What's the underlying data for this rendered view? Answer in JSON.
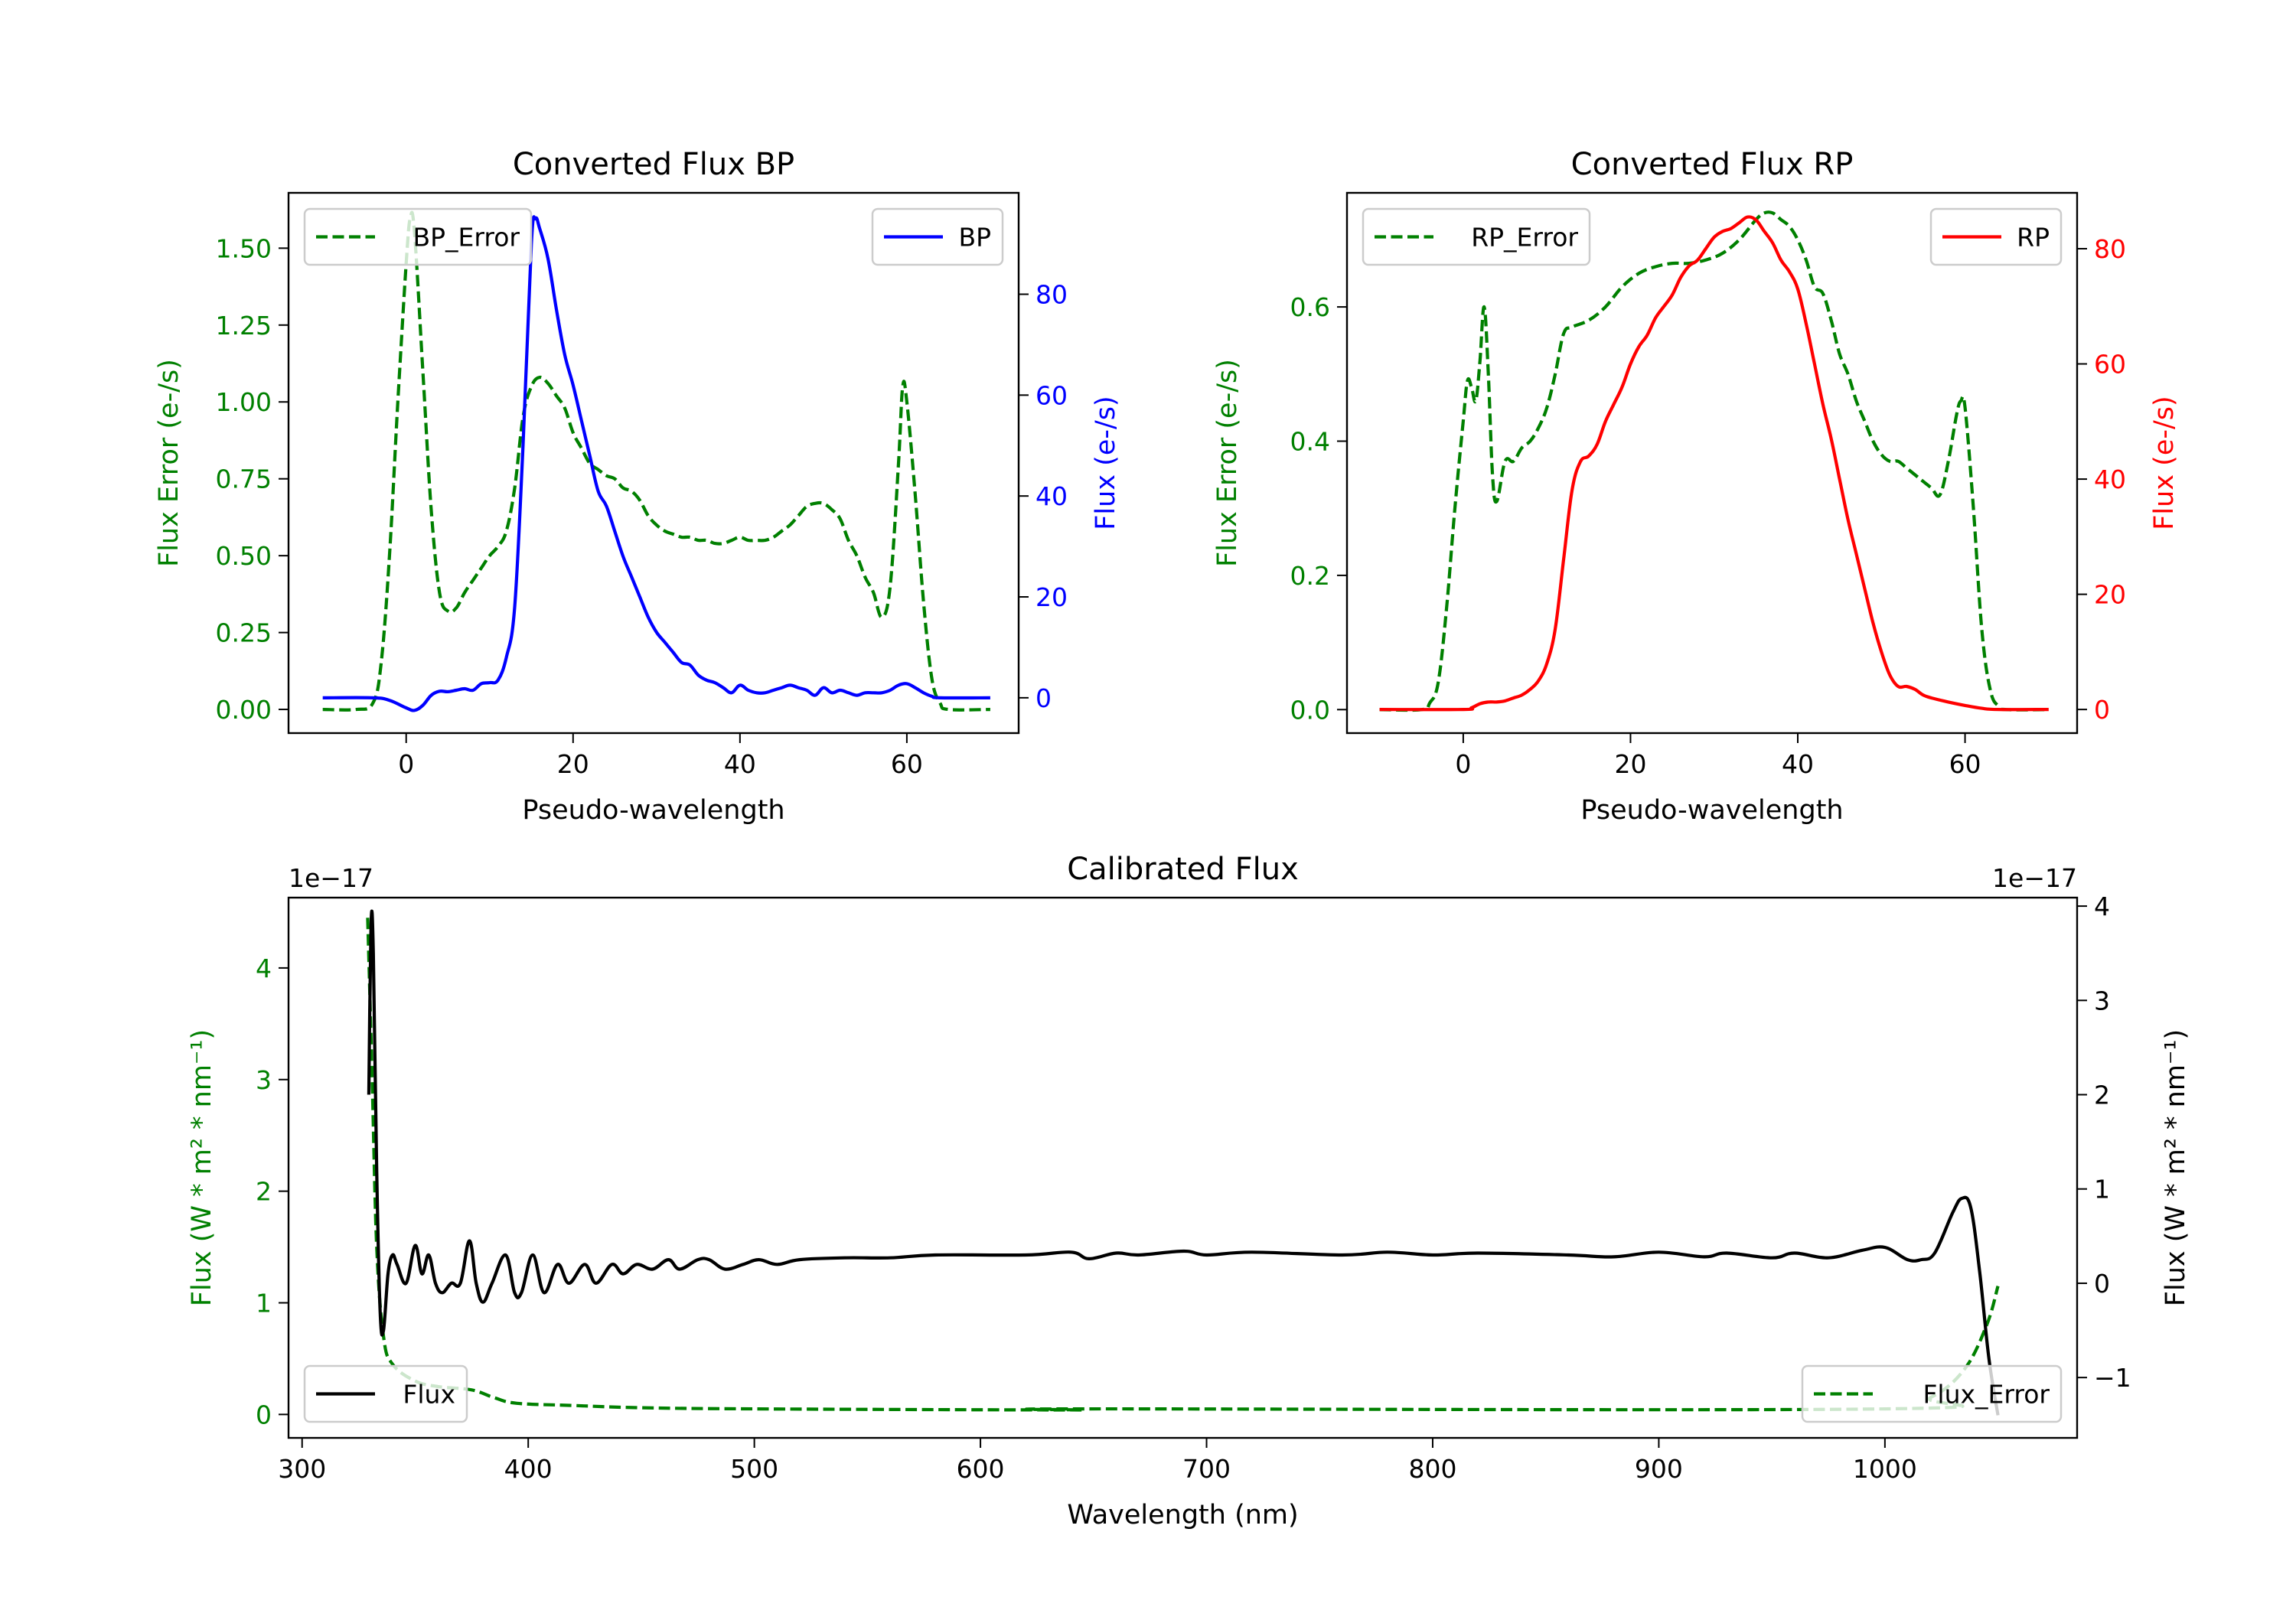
{
  "chart_data": [
    {
      "id": "bp",
      "type": "line",
      "title": "Converted Flux BP",
      "xlabel": "Pseudo-wavelength",
      "ylabel_left": "Flux Error (e-/s)",
      "ylabel_right": "Flux (e-/s)",
      "xlim": [
        -14.1,
        73.4
      ],
      "ylim_left": [
        -0.077,
        1.68
      ],
      "ylim_right": [
        -7,
        100.1
      ],
      "xticks": [
        0,
        20,
        40,
        60
      ],
      "xtick_labels": [
        "0",
        "20",
        "40",
        "60"
      ],
      "yticks_left": [
        0,
        0.25,
        0.5,
        0.75,
        1.0,
        1.25,
        1.5
      ],
      "ytick_labels_left": [
        "0.00",
        "0.25",
        "0.50",
        "0.75",
        "1.00",
        "1.25",
        "1.50"
      ],
      "yticks_right": [
        0,
        20,
        40,
        60,
        80
      ],
      "ytick_labels_right": [
        "0",
        "20",
        "40",
        "60",
        "80"
      ],
      "left_color": "#008000",
      "right_color": "#0000ff",
      "grid": false,
      "legends": [
        {
          "placement": "upper-left",
          "entries": [
            {
              "label": "BP_Error",
              "series": "BP_Error"
            }
          ]
        },
        {
          "placement": "upper-right",
          "entries": [
            {
              "label": "BP",
              "series": "BP"
            }
          ]
        }
      ],
      "series": [
        {
          "name": "BP_Error",
          "axis": "left",
          "color": "#008000",
          "style": "dashed",
          "x": [
            -10,
            -6,
            -4,
            -3,
            -2,
            -1,
            0,
            0.5,
            1,
            2,
            3,
            4,
            5,
            6,
            7,
            8,
            9,
            10,
            11,
            12,
            13,
            14,
            15,
            16,
            17,
            18,
            19,
            20,
            21,
            22,
            23,
            24,
            25,
            26,
            27,
            28,
            29,
            30,
            31,
            32,
            33,
            34,
            35,
            36,
            37,
            38,
            39,
            40,
            41,
            42,
            43,
            44,
            45,
            46,
            47,
            48,
            49,
            50,
            51,
            52,
            53,
            54,
            55,
            56,
            57,
            58,
            59,
            59.5,
            60,
            61,
            62,
            63,
            64,
            65,
            70
          ],
          "y": [
            0,
            0,
            0.02,
            0.15,
            0.5,
            1.0,
            1.45,
            1.6,
            1.55,
            1.1,
            0.65,
            0.38,
            0.32,
            0.33,
            0.38,
            0.42,
            0.46,
            0.5,
            0.53,
            0.58,
            0.72,
            0.95,
            1.05,
            1.08,
            1.06,
            1.02,
            0.98,
            0.9,
            0.85,
            0.8,
            0.78,
            0.76,
            0.75,
            0.72,
            0.71,
            0.68,
            0.63,
            0.6,
            0.58,
            0.57,
            0.56,
            0.56,
            0.55,
            0.55,
            0.54,
            0.54,
            0.55,
            0.56,
            0.55,
            0.55,
            0.55,
            0.56,
            0.58,
            0.6,
            0.63,
            0.66,
            0.67,
            0.67,
            0.65,
            0.62,
            0.55,
            0.5,
            0.43,
            0.38,
            0.3,
            0.4,
            0.8,
            1.05,
            1.0,
            0.7,
            0.35,
            0.1,
            0.02,
            0,
            0
          ]
        },
        {
          "name": "BP",
          "axis": "right",
          "color": "#0000ff",
          "style": "solid",
          "x": [
            -10,
            -4,
            -2,
            0,
            1,
            2,
            3,
            4,
            5,
            6,
            7,
            8,
            9,
            10,
            11,
            12,
            13,
            14,
            15,
            15.5,
            16,
            17,
            18,
            19,
            20,
            21,
            22,
            23,
            24,
            25,
            26,
            27,
            28,
            29,
            30,
            31,
            32,
            33,
            34,
            35,
            36,
            37,
            38,
            39,
            40,
            41,
            42,
            43,
            44,
            45,
            46,
            47,
            48,
            49,
            50,
            51,
            52,
            53,
            54,
            55,
            56,
            57,
            58,
            59,
            60,
            61,
            62,
            63,
            64,
            70
          ],
          "y": [
            0,
            0,
            -0.5,
            -2,
            -2.5,
            -1.5,
            0.5,
            1.3,
            1.2,
            1.5,
            1.8,
            1.5,
            2.8,
            3,
            3.5,
            8,
            18,
            50,
            90,
            95,
            93,
            87,
            77,
            68,
            62,
            55,
            48,
            41,
            38,
            33,
            28,
            24,
            20,
            16,
            13,
            11,
            9,
            7,
            6.5,
            4.5,
            3.5,
            3,
            2,
            1,
            2.5,
            1.5,
            1,
            1,
            1.5,
            2,
            2.5,
            2,
            1.5,
            0.5,
            2,
            1,
            1.5,
            1,
            0.5,
            1,
            1,
            1,
            1.5,
            2.5,
            2.8,
            2,
            1,
            0.3,
            0,
            0
          ]
        }
      ]
    },
    {
      "id": "rp",
      "type": "line",
      "title": "Converted Flux RP",
      "xlabel": "Pseudo-wavelength",
      "ylabel_left": "Flux Error (e-/s)",
      "ylabel_right": "Flux (e-/s)",
      "xlim": [
        -13.9,
        73.4
      ],
      "ylim_left": [
        -0.035,
        0.77
      ],
      "ylim_right": [
        -4.1,
        89.7
      ],
      "xticks": [
        0,
        20,
        40,
        60
      ],
      "xtick_labels": [
        "0",
        "20",
        "40",
        "60"
      ],
      "yticks_left": [
        0,
        0.2,
        0.4,
        0.6
      ],
      "ytick_labels_left": [
        "0.0",
        "0.2",
        "0.4",
        "0.6"
      ],
      "yticks_right": [
        0,
        20,
        40,
        60,
        80
      ],
      "ytick_labels_right": [
        "0",
        "20",
        "40",
        "60",
        "80"
      ],
      "left_color": "#008000",
      "right_color": "#ff0000",
      "grid": false,
      "legends": [
        {
          "placement": "upper-left",
          "entries": [
            {
              "label": "RP_Error",
              "series": "RP_Error"
            }
          ]
        },
        {
          "placement": "upper-right",
          "entries": [
            {
              "label": "RP",
              "series": "RP"
            }
          ]
        }
      ],
      "series": [
        {
          "name": "RP_Error",
          "axis": "left",
          "color": "#008000",
          "style": "dashed",
          "x": [
            -10,
            -5,
            -4,
            -3,
            -2,
            -1,
            0,
            0.5,
            1,
            1.5,
            2,
            2.5,
            3,
            3.5,
            4,
            5,
            6,
            7,
            8,
            9,
            10,
            11,
            12,
            13,
            15,
            17,
            19,
            21,
            23,
            25,
            27,
            29,
            31,
            33,
            35,
            36,
            37,
            38,
            39,
            40,
            41,
            42,
            43,
            44,
            45,
            46,
            47,
            48,
            49,
            50,
            51,
            52,
            53,
            54,
            55,
            56,
            57,
            58,
            59,
            59.5,
            60,
            61,
            62,
            63,
            64,
            65,
            70
          ],
          "y": [
            0,
            0,
            0.01,
            0.04,
            0.15,
            0.3,
            0.43,
            0.49,
            0.48,
            0.46,
            0.52,
            0.6,
            0.5,
            0.35,
            0.31,
            0.37,
            0.37,
            0.39,
            0.4,
            0.42,
            0.45,
            0.5,
            0.56,
            0.57,
            0.58,
            0.6,
            0.63,
            0.65,
            0.66,
            0.665,
            0.665,
            0.67,
            0.68,
            0.7,
            0.73,
            0.74,
            0.74,
            0.73,
            0.72,
            0.7,
            0.67,
            0.63,
            0.62,
            0.58,
            0.53,
            0.5,
            0.46,
            0.43,
            0.4,
            0.38,
            0.37,
            0.37,
            0.36,
            0.35,
            0.34,
            0.33,
            0.32,
            0.37,
            0.44,
            0.46,
            0.45,
            0.3,
            0.12,
            0.03,
            0.005,
            0,
            0
          ]
        },
        {
          "name": "RP",
          "axis": "right",
          "color": "#ff0000",
          "style": "solid",
          "x": [
            -10,
            0,
            1,
            2,
            3,
            4,
            5,
            6,
            7,
            8,
            9,
            10,
            11,
            12,
            13,
            14,
            15,
            16,
            17,
            18,
            19,
            20,
            21,
            22,
            23,
            24,
            25,
            26,
            27,
            28,
            29,
            30,
            31,
            32,
            33,
            34,
            35,
            36,
            37,
            38,
            39,
            40,
            41,
            42,
            43,
            44,
            45,
            46,
            47,
            48,
            49,
            50,
            51,
            52,
            53,
            54,
            55,
            56,
            58,
            60,
            62,
            64,
            70
          ],
          "y": [
            0,
            0,
            0.3,
            1,
            1.3,
            1.3,
            1.5,
            2,
            2.5,
            3.5,
            5,
            8,
            14,
            26,
            38,
            43,
            44,
            46,
            50,
            53,
            56,
            60,
            63,
            65,
            68,
            70,
            72,
            75,
            77,
            78,
            80,
            82,
            83,
            83.5,
            84.5,
            85.5,
            85,
            83,
            81,
            78,
            76,
            73,
            67,
            60,
            53,
            47,
            40,
            33,
            27,
            21,
            15,
            10,
            6,
            4,
            4,
            3.5,
            2.5,
            2,
            1.3,
            0.7,
            0.2,
            0,
            0
          ]
        }
      ]
    },
    {
      "id": "calibrated",
      "type": "line",
      "title": "Calibrated Flux",
      "xlabel": "Wavelength (nm)",
      "ylabel_left": "Flux (W * m² * nm⁻¹)",
      "ylabel_right": "Flux (W * m² * nm⁻¹)",
      "offset_left": "1e−17",
      "offset_right": "1e−17",
      "xlim": [
        294,
        1085
      ],
      "ylim_left": [
        -0.21,
        4.63
      ],
      "ylim_right": [
        -1.64,
        4.09
      ],
      "xticks": [
        300,
        400,
        500,
        600,
        700,
        800,
        900,
        1000
      ],
      "xtick_labels": [
        "300",
        "400",
        "500",
        "600",
        "700",
        "800",
        "900",
        "1000"
      ],
      "yticks_left": [
        0,
        1,
        2,
        3,
        4
      ],
      "ytick_labels_left": [
        "0",
        "1",
        "2",
        "3",
        "4"
      ],
      "yticks_right": [
        -1,
        0,
        1,
        2,
        3,
        4
      ],
      "ytick_labels_right": [
        "−1",
        "0",
        "1",
        "2",
        "3",
        "4"
      ],
      "left_color": "#008000",
      "right_color": "#000000",
      "grid": false,
      "legends": [
        {
          "placement": "lower-left",
          "entries": [
            {
              "label": "Flux",
              "series": "Flux"
            }
          ]
        },
        {
          "placement": "lower-right",
          "entries": [
            {
              "label": "Flux_Error",
              "series": "Flux_Error"
            }
          ]
        }
      ],
      "series": [
        {
          "name": "Flux_Error",
          "axis": "left",
          "color": "#008000",
          "style": "dashed",
          "x": [
            329,
            331,
            333,
            336,
            340,
            350,
            360,
            375,
            385,
            395,
            420,
            450,
            500,
            640,
            645,
            1000,
            1020,
            1035,
            1045,
            1050
          ],
          "y": [
            4.45,
            3.0,
            1.5,
            0.7,
            0.45,
            0.3,
            0.25,
            0.22,
            0.15,
            0.1,
            0.08,
            0.06,
            0.05,
            0.04,
            0.05,
            0.05,
            0.15,
            0.4,
            0.8,
            1.15
          ]
        },
        {
          "name": "Flux",
          "axis": "right",
          "color": "#000000",
          "style": "solid",
          "x": [
            329.5,
            330.5,
            331.5,
            333,
            334.5,
            336,
            338,
            340,
            342,
            346,
            350,
            353,
            356,
            359,
            362,
            366,
            370,
            374,
            377,
            380,
            384,
            390,
            394,
            397,
            402,
            407,
            413,
            418,
            425,
            430,
            437,
            442,
            448,
            455,
            462,
            467,
            475,
            480,
            487,
            495,
            502,
            510,
            520,
            540,
            560,
            580,
            620,
            640,
            648,
            660,
            670,
            690,
            700,
            720,
            760,
            780,
            800,
            820,
            860,
            880,
            900,
            920,
            930,
            950,
            960,
            975,
            990,
            1000,
            1010,
            1016,
            1022,
            1030,
            1034,
            1038,
            1042,
            1046,
            1050
          ],
          "y": [
            2.0,
            3.8,
            3.5,
            1.2,
            -0.3,
            -0.5,
            0.1,
            0.3,
            0.2,
            0.0,
            0.4,
            0.1,
            0.3,
            0.0,
            -0.1,
            0.0,
            0.0,
            0.45,
            0.0,
            -0.2,
            0.0,
            0.3,
            -0.1,
            -0.1,
            0.3,
            -0.1,
            0.2,
            0.0,
            0.2,
            0.0,
            0.2,
            0.1,
            0.2,
            0.15,
            0.25,
            0.15,
            0.25,
            0.25,
            0.15,
            0.2,
            0.25,
            0.2,
            0.25,
            0.27,
            0.27,
            0.3,
            0.3,
            0.33,
            0.26,
            0.32,
            0.3,
            0.34,
            0.3,
            0.33,
            0.3,
            0.33,
            0.3,
            0.32,
            0.3,
            0.28,
            0.33,
            0.28,
            0.32,
            0.27,
            0.32,
            0.27,
            0.35,
            0.38,
            0.25,
            0.25,
            0.32,
            0.75,
            0.9,
            0.8,
            0.1,
            -0.8,
            -1.4
          ]
        }
      ]
    }
  ]
}
